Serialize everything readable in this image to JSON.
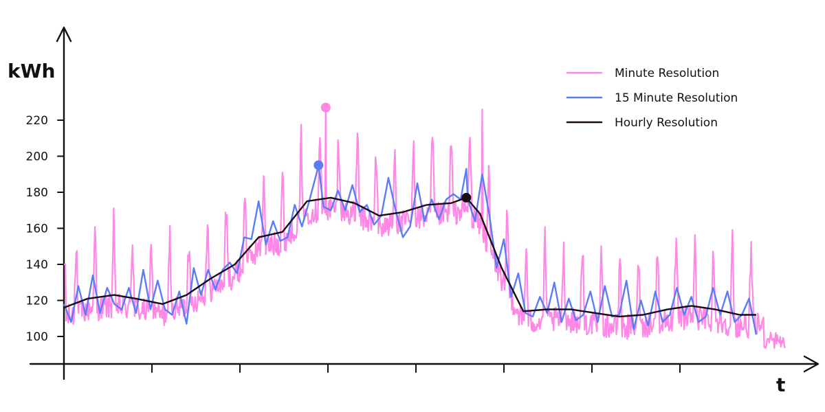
{
  "chart_data": {
    "type": "line",
    "ylabel": "kWh",
    "xlabel": "t",
    "ylim": [
      85,
      240
    ],
    "xlim": [
      0,
      100
    ],
    "y_ticks": [
      100,
      120,
      140,
      160,
      180,
      200,
      220
    ],
    "x_tick_labels": [],
    "grid": false,
    "legend_position": "top-right",
    "series": [
      {
        "name": "Minute Resolution",
        "color": "#ff88e6",
        "marker": {
          "x": 36.3,
          "y": 227
        }
      },
      {
        "name": "15 Minute Resolution",
        "color": "#5b7cf7",
        "marker": {
          "x": 35.3,
          "y": 195
        }
      },
      {
        "name": "Hourly Resolution",
        "color": "#1a0a12",
        "marker": {
          "x": 55.8,
          "y": 177
        }
      }
    ],
    "hourly": {
      "x": [
        0,
        3.3,
        7,
        10,
        13.7,
        17,
        20.3,
        23.7,
        27,
        30.3,
        33.7,
        37,
        40.3,
        43.7,
        47,
        50.3,
        53.7,
        55.8,
        57.7,
        60.7,
        63.7,
        67,
        70.3,
        73.7,
        77,
        80.3,
        83.7,
        87,
        90.3,
        93.7,
        96
      ],
      "y": [
        116,
        121,
        123,
        121,
        118,
        123,
        132,
        140,
        155,
        158,
        175,
        177,
        174,
        167,
        169,
        173,
        174,
        177,
        168,
        138,
        114,
        115,
        115,
        113,
        111,
        112,
        115,
        117,
        115,
        112,
        112
      ]
    },
    "quarter_hour": {
      "x": [
        0,
        1,
        2,
        3,
        4,
        5,
        6,
        7,
        8,
        9,
        10,
        11,
        12,
        13,
        14,
        15,
        16,
        17,
        18,
        19,
        20,
        21,
        22,
        23,
        24,
        25,
        26,
        27,
        28,
        29,
        30,
        31,
        32,
        33,
        34,
        35,
        35.3,
        36,
        37,
        38,
        39,
        40,
        41,
        42,
        43,
        44,
        45,
        46,
        47,
        48,
        49,
        50,
        51,
        52,
        53,
        54,
        55,
        55.8,
        56,
        57,
        58,
        59,
        60,
        61,
        62,
        63,
        64,
        65,
        66,
        67,
        68,
        69,
        70,
        71,
        72,
        73,
        74,
        75,
        76,
        77,
        78,
        79,
        80,
        81,
        82,
        83,
        84,
        85,
        86,
        87,
        88,
        89,
        90,
        91,
        92,
        93,
        94,
        95,
        96
      ],
      "y": [
        118,
        108,
        128,
        112,
        134,
        113,
        127,
        118,
        115,
        127,
        113,
        137,
        115,
        131,
        115,
        112,
        125,
        107,
        138,
        123,
        137,
        126,
        137,
        141,
        135,
        155,
        154,
        175,
        151,
        164,
        153,
        155,
        173,
        161,
        175,
        190,
        195,
        172,
        170,
        181,
        170,
        184,
        169,
        173,
        162,
        167,
        188,
        170,
        155,
        161,
        185,
        164,
        176,
        165,
        176,
        179,
        176,
        193,
        176,
        164,
        190,
        167,
        138,
        154,
        122,
        135,
        113,
        111,
        122,
        113,
        130,
        108,
        121,
        109,
        112,
        125,
        108,
        128,
        111,
        112,
        131,
        104,
        120,
        106,
        125,
        108,
        112,
        127,
        112,
        122,
        108,
        111,
        127,
        112,
        125,
        108,
        112,
        121,
        101
      ]
    }
  },
  "legend": {
    "items": [
      {
        "label": "Minute Resolution",
        "color": "#ff88e6"
      },
      {
        "label": "15 Minute Resolution",
        "color": "#5b7cf7"
      },
      {
        "label": "Hourly Resolution",
        "color": "#1a0a12"
      }
    ]
  }
}
